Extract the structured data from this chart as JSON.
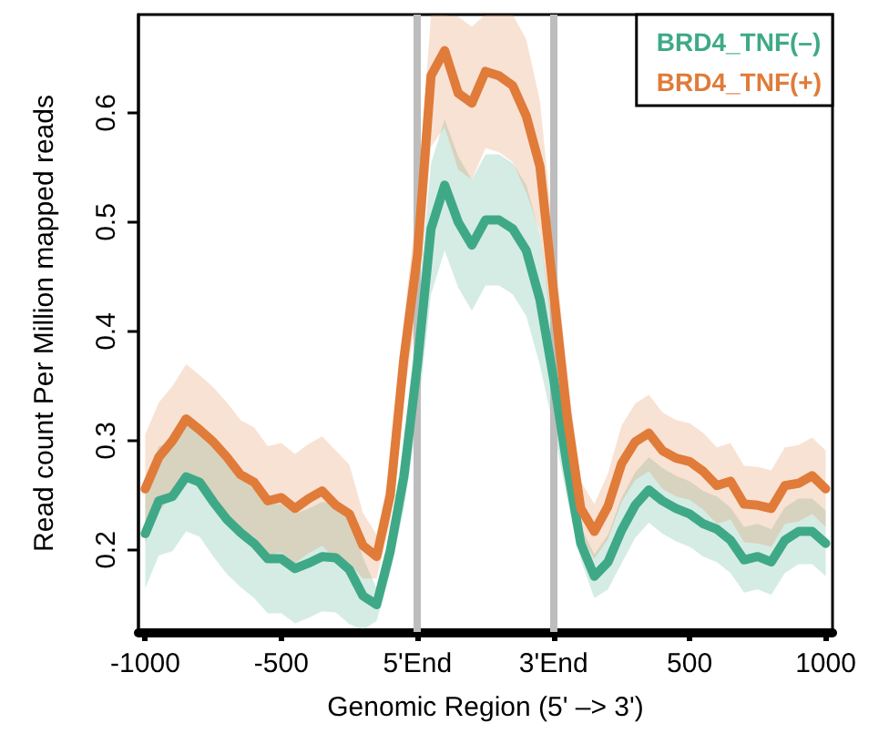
{
  "chart_data": {
    "type": "line",
    "xlabel": "Genomic Region (5' –> 3')",
    "ylabel": "Read count Per Million mapped reads",
    "categories": [
      "-1000",
      null,
      null,
      null,
      null,
      null,
      null,
      null,
      null,
      null,
      "-500",
      null,
      null,
      null,
      null,
      null,
      null,
      null,
      null,
      null,
      "5'End",
      null,
      null,
      null,
      null,
      null,
      null,
      null,
      null,
      null,
      "3'End",
      null,
      null,
      null,
      null,
      null,
      null,
      null,
      null,
      null,
      "500",
      null,
      null,
      null,
      null,
      null,
      null,
      null,
      null,
      null,
      "1000"
    ],
    "ylim": [
      0.125,
      0.69
    ],
    "yticks": [
      0.2,
      0.3,
      0.4,
      0.5,
      0.6
    ],
    "grid": false,
    "legend": "top right",
    "marker": "none",
    "line_style": "solid",
    "ref_lines": [
      {
        "axis": "x",
        "value": "5'End",
        "color": "#bdbdbd"
      },
      {
        "axis": "x",
        "value": "3'End",
        "color": "#bdbdbd"
      }
    ],
    "series": [
      {
        "name": "BRD4_TNF(–)",
        "color": "#3fa987",
        "values": [
          0.215,
          0.245,
          0.249,
          0.267,
          0.262,
          0.244,
          0.228,
          0.216,
          0.206,
          0.192,
          0.192,
          0.183,
          0.188,
          0.194,
          0.193,
          0.182,
          0.158,
          0.15,
          0.199,
          0.267,
          0.37,
          0.494,
          0.534,
          0.5,
          0.479,
          0.502,
          0.502,
          0.494,
          0.474,
          0.429,
          0.357,
          0.277,
          0.206,
          0.176,
          0.189,
          0.218,
          0.241,
          0.255,
          0.245,
          0.238,
          0.233,
          0.224,
          0.219,
          0.209,
          0.191,
          0.194,
          0.189,
          0.209,
          0.217,
          0.217,
          0.206
        ],
        "lower": [
          0.165,
          0.195,
          0.199,
          0.217,
          0.212,
          0.194,
          0.178,
          0.166,
          0.156,
          0.142,
          0.142,
          0.133,
          0.138,
          0.144,
          0.143,
          0.132,
          0.127,
          0.135,
          0.179,
          0.237,
          0.32,
          0.434,
          0.474,
          0.44,
          0.419,
          0.442,
          0.442,
          0.434,
          0.414,
          0.369,
          0.312,
          0.247,
          0.191,
          0.156,
          0.164,
          0.188,
          0.211,
          0.225,
          0.215,
          0.208,
          0.203,
          0.194,
          0.189,
          0.179,
          0.161,
          0.164,
          0.159,
          0.179,
          0.187,
          0.187,
          0.176
        ],
        "upper": [
          0.265,
          0.295,
          0.299,
          0.317,
          0.312,
          0.294,
          0.278,
          0.266,
          0.256,
          0.242,
          0.242,
          0.233,
          0.238,
          0.244,
          0.243,
          0.232,
          0.193,
          0.165,
          0.219,
          0.297,
          0.42,
          0.554,
          0.594,
          0.56,
          0.539,
          0.562,
          0.562,
          0.554,
          0.534,
          0.489,
          0.402,
          0.307,
          0.221,
          0.196,
          0.214,
          0.248,
          0.271,
          0.285,
          0.275,
          0.268,
          0.263,
          0.254,
          0.249,
          0.239,
          0.221,
          0.224,
          0.219,
          0.239,
          0.247,
          0.247,
          0.236
        ]
      },
      {
        "name": "BRD4_TNF(+)",
        "color": "#e07b39",
        "values": [
          0.256,
          0.285,
          0.3,
          0.32,
          0.31,
          0.299,
          0.285,
          0.269,
          0.262,
          0.245,
          0.248,
          0.238,
          0.247,
          0.254,
          0.241,
          0.233,
          0.204,
          0.194,
          0.25,
          0.375,
          0.47,
          0.634,
          0.657,
          0.618,
          0.609,
          0.638,
          0.634,
          0.625,
          0.597,
          0.551,
          0.436,
          0.322,
          0.238,
          0.217,
          0.24,
          0.279,
          0.299,
          0.307,
          0.291,
          0.284,
          0.281,
          0.272,
          0.259,
          0.263,
          0.242,
          0.241,
          0.238,
          0.259,
          0.261,
          0.268,
          0.256
        ],
        "lower": [
          0.206,
          0.235,
          0.25,
          0.27,
          0.26,
          0.249,
          0.235,
          0.219,
          0.212,
          0.195,
          0.198,
          0.188,
          0.197,
          0.204,
          0.191,
          0.188,
          0.174,
          0.174,
          0.225,
          0.34,
          0.42,
          0.569,
          0.587,
          0.548,
          0.539,
          0.568,
          0.564,
          0.555,
          0.527,
          0.491,
          0.386,
          0.282,
          0.213,
          0.192,
          0.21,
          0.244,
          0.264,
          0.272,
          0.256,
          0.249,
          0.246,
          0.237,
          0.224,
          0.228,
          0.207,
          0.206,
          0.203,
          0.224,
          0.226,
          0.233,
          0.221
        ],
        "upper": [
          0.306,
          0.335,
          0.35,
          0.37,
          0.36,
          0.349,
          0.335,
          0.319,
          0.312,
          0.295,
          0.298,
          0.288,
          0.297,
          0.304,
          0.291,
          0.278,
          0.234,
          0.214,
          0.275,
          0.41,
          0.52,
          0.69,
          0.69,
          0.688,
          0.679,
          0.69,
          0.69,
          0.69,
          0.667,
          0.611,
          0.486,
          0.362,
          0.263,
          0.242,
          0.27,
          0.314,
          0.334,
          0.342,
          0.326,
          0.319,
          0.316,
          0.307,
          0.294,
          0.298,
          0.277,
          0.276,
          0.273,
          0.294,
          0.296,
          0.303,
          0.291
        ]
      }
    ]
  }
}
